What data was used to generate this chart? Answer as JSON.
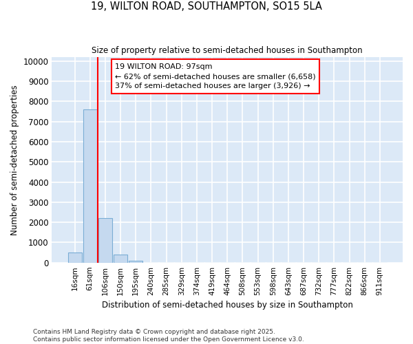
{
  "title_line1": "19, WILTON ROAD, SOUTHAMPTON, SO15 5LA",
  "title_line2": "Size of property relative to semi-detached houses in Southampton",
  "xlabel": "Distribution of semi-detached houses by size in Southampton",
  "ylabel": "Number of semi-detached properties",
  "bar_labels": [
    "16sqm",
    "61sqm",
    "106sqm",
    "150sqm",
    "195sqm",
    "240sqm",
    "285sqm",
    "329sqm",
    "374sqm",
    "419sqm",
    "464sqm",
    "508sqm",
    "553sqm",
    "598sqm",
    "643sqm",
    "687sqm",
    "732sqm",
    "777sqm",
    "822sqm",
    "866sqm",
    "911sqm"
  ],
  "bar_values": [
    500,
    7600,
    2200,
    400,
    100,
    0,
    0,
    0,
    0,
    0,
    0,
    0,
    0,
    0,
    0,
    0,
    0,
    0,
    0,
    0,
    0
  ],
  "bar_color": "#c5d9ef",
  "bar_edge_color": "#7aadd4",
  "bg_color": "#dce9f7",
  "grid_color": "#ffffff",
  "annotation_title": "19 WILTON ROAD: 97sqm",
  "annotation_line1": "← 62% of semi-detached houses are smaller (6,658)",
  "annotation_line2": "37% of semi-detached houses are larger (3,926) →",
  "ylim": [
    0,
    10200
  ],
  "yticks": [
    0,
    1000,
    2000,
    3000,
    4000,
    5000,
    6000,
    7000,
    8000,
    9000,
    10000
  ],
  "footer_line1": "Contains HM Land Registry data © Crown copyright and database right 2025.",
  "footer_line2": "Contains public sector information licensed under the Open Government Licence v3.0.",
  "fig_bg": "#ffffff"
}
